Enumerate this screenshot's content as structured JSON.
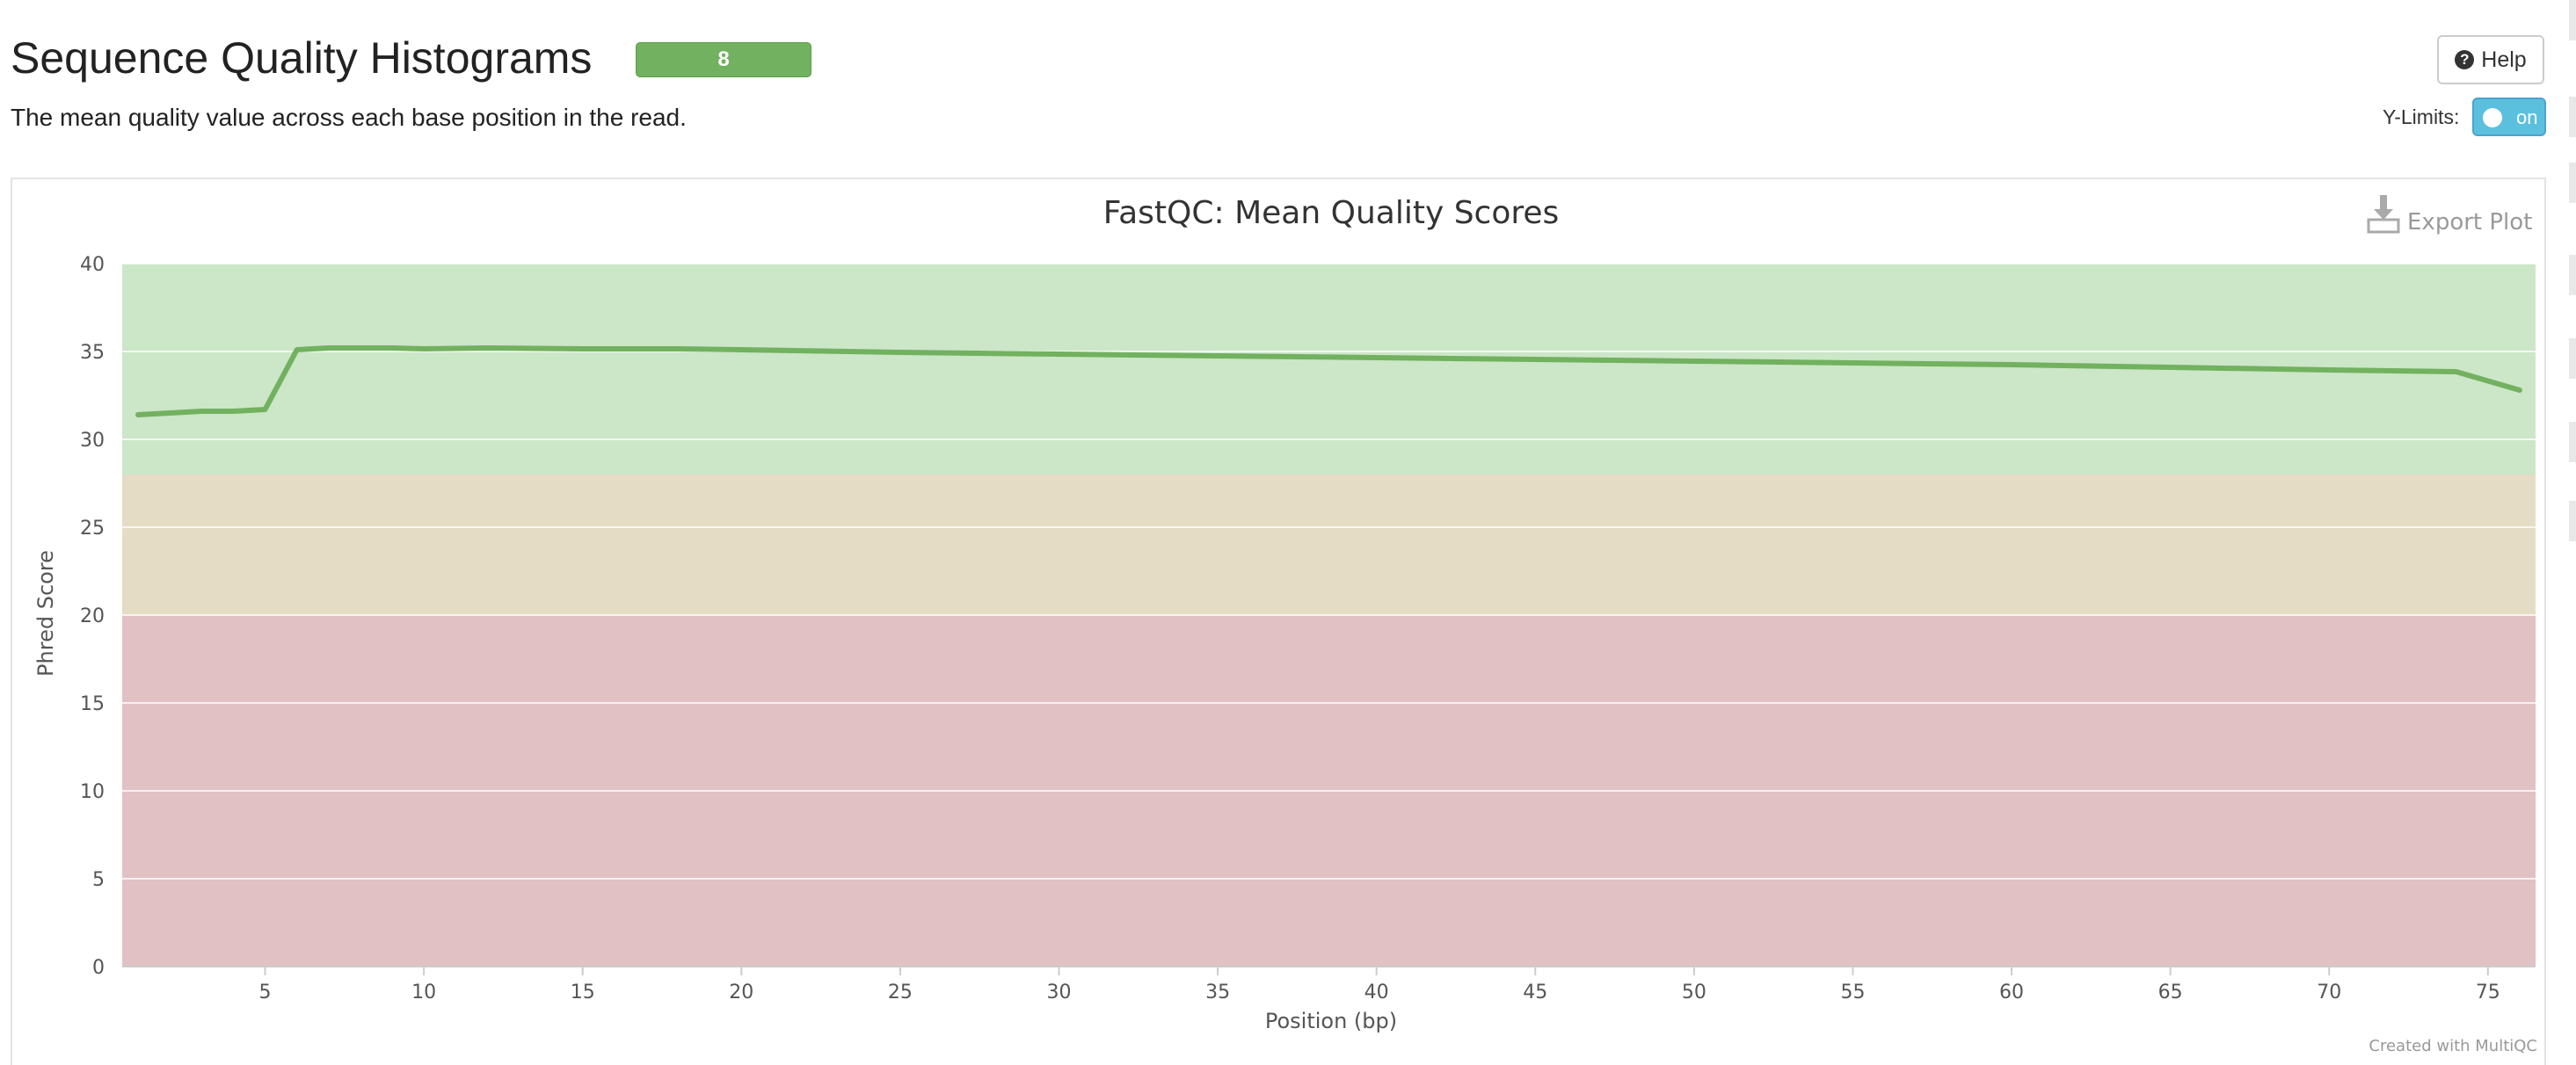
{
  "section": {
    "title": "Sequence Quality Histograms",
    "badge": "8",
    "description": "The mean quality value across each base position in the read."
  },
  "controls": {
    "help_label": "Help",
    "ylimits_label": "Y-Limits:",
    "ylimits_state": "on"
  },
  "export_label": "Export Plot",
  "credit": "Created with MultiQC",
  "colors": {
    "series": "#72b15f",
    "band_good": "#cce6c8",
    "band_warn": "#e5dcc5",
    "band_fail": "#e1c1c3",
    "badge": "#72b15f",
    "toggle": "#5bc0de"
  },
  "chart_data": {
    "type": "line",
    "title": "FastQC: Mean Quality Scores",
    "xlabel": "Position (bp)",
    "ylabel": "Phred Score",
    "xlim": [
      0.5,
      76.5
    ],
    "ylim": [
      0,
      40
    ],
    "xticks": [
      5,
      10,
      15,
      20,
      25,
      30,
      35,
      40,
      45,
      50,
      55,
      60,
      65,
      70,
      75
    ],
    "yticks": [
      0,
      5,
      10,
      15,
      20,
      25,
      30,
      35,
      40
    ],
    "grid": true,
    "bands": [
      {
        "from": 28,
        "to": 40,
        "color": "#cce6c8"
      },
      {
        "from": 20,
        "to": 28,
        "color": "#e5dcc5"
      },
      {
        "from": 0,
        "to": 20,
        "color": "#e1c1c3"
      }
    ],
    "series": [
      {
        "color": "#72b15f",
        "x": [
          1,
          2,
          3,
          4,
          5,
          6,
          7,
          8,
          9,
          10,
          12,
          15,
          18,
          20,
          25,
          30,
          35,
          40,
          45,
          50,
          55,
          60,
          65,
          70,
          74,
          76
        ],
        "y": [
          31.4,
          31.5,
          31.6,
          31.6,
          31.7,
          35.1,
          35.2,
          35.2,
          35.2,
          35.15,
          35.2,
          35.15,
          35.15,
          35.1,
          34.95,
          34.85,
          34.75,
          34.65,
          34.55,
          34.45,
          34.35,
          34.25,
          34.1,
          33.95,
          33.85,
          32.8
        ]
      }
    ]
  }
}
